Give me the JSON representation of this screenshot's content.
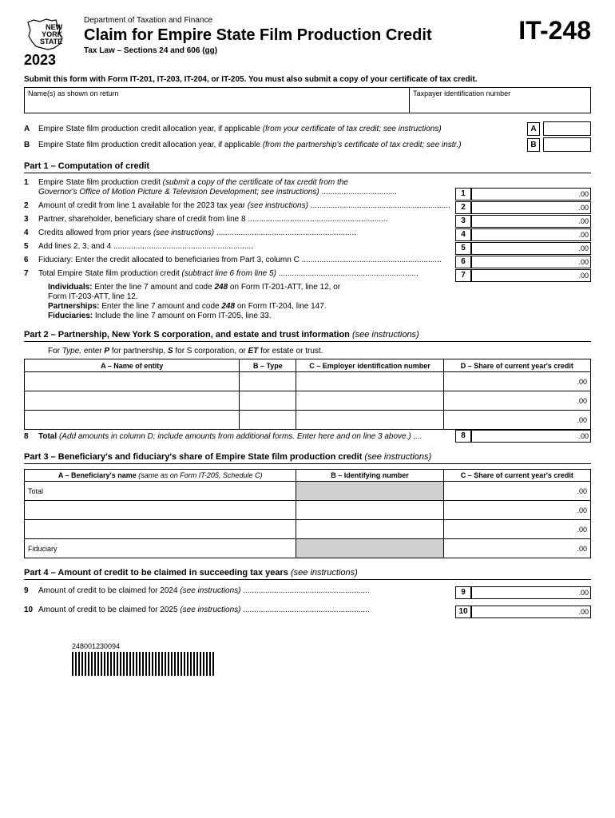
{
  "header": {
    "state_line1": "NEW",
    "state_line2": "YORK",
    "state_line3": "STATE",
    "year": "2023",
    "dept": "Department of Taxation and Finance",
    "title": "Claim for Empire State Film Production Credit",
    "tax_law": "Tax Law – Sections 24 and 606 (gg)",
    "form_number": "IT-248"
  },
  "submit_instr": "Submit this form with Form IT-201, IT-203, IT-204, or IT-205. You must also submit a copy of your certificate of tax credit.",
  "name_fields": {
    "names_label": "Name(s) as shown on return",
    "tin_label": "Taxpayer identification number"
  },
  "alloc": {
    "a_label": "A",
    "a_text": "Empire State film production credit allocation year, if applicable ",
    "a_italic": "(from your certificate of tax credit; see instructions)",
    "b_label": "B",
    "b_text": "Empire State film production credit allocation year, if applicable ",
    "b_italic": "(from the partnership's certificate of tax credit; see instr.)"
  },
  "part1": {
    "title": "Part 1 – Computation of credit",
    "lines": [
      {
        "num": "1",
        "text": "Empire State film production credit ",
        "italic": "(submit a copy of the certificate of tax credit from the",
        "cont": "Governor's Office of Motion Picture & Television Development; see instructions)",
        "box": "1"
      },
      {
        "num": "2",
        "text": "Amount of credit from line 1 available for the 2023 tax year ",
        "italic": "(see instructions)",
        "box": "2"
      },
      {
        "num": "3",
        "text": "Partner, shareholder, beneficiary share of credit from line 8",
        "box": "3"
      },
      {
        "num": "4",
        "text": "Credits allowed from prior years ",
        "italic": "(see instructions)",
        "box": "4"
      },
      {
        "num": "5",
        "text": "Add lines 2, 3, and 4",
        "box": "5"
      },
      {
        "num": "6",
        "text": "Fiduciary: Enter the credit allocated to beneficiaries from Part 3, column C",
        "box": "6"
      },
      {
        "num": "7",
        "text": "Total Empire State film production credit ",
        "italic": "(subtract line 6 from line 5)",
        "box": "7"
      }
    ],
    "instr1a": "Individuals:",
    "instr1b": " Enter the line 7 amount and code ",
    "instr1c": "248",
    "instr1d": " on Form IT-201-ATT, line 12, or",
    "instr1e": "Form IT-203-ATT, line 12.",
    "instr2a": "Partnerships:",
    "instr2b": " Enter the line 7 amount and code ",
    "instr2c": "248",
    "instr2d": " on Form IT-204, line 147.",
    "instr3a": "Fiduciaries:",
    "instr3b": " Include the line 7 amount on Form IT-205, line 33.",
    "zeros": ".00"
  },
  "part2": {
    "title_bold": "Part 2 – Partnership, New York S corporation, and estate and trust information ",
    "title_italic": "(see instructions)",
    "subtitle_a": "For ",
    "subtitle_b": "Type,",
    "subtitle_c": " enter ",
    "subtitle_d": "P",
    "subtitle_e": " for partnership, ",
    "subtitle_f": "S",
    "subtitle_g": " for S corporation, or ",
    "subtitle_h": "ET",
    "subtitle_i": " for estate or trust.",
    "headers": {
      "a": "A – Name of entity",
      "b": "B – Type",
      "c": "C – Employer identification number",
      "d": "D – Share of current year's credit"
    },
    "total_num": "8",
    "total_bold": "Total ",
    "total_italic": "(Add amounts in column D; include amounts from additional forms. Enter here and on line 3 above.)",
    "zeros": ".00"
  },
  "part3": {
    "title_bold": "Part 3 – Beneficiary's and fiduciary's share of Empire State film production credit ",
    "title_italic": "(see instructions)",
    "headers": {
      "a": "A – Beneficiary's name ",
      "a_italic": "(same as on Form IT-205, Schedule C)",
      "b": "B – Identifying number",
      "c": "C – Share of current year's credit"
    },
    "total": "Total",
    "fiduciary": "Fiduciary",
    "zeros": ".00"
  },
  "part4": {
    "title_bold": "Part 4 – Amount of credit to be claimed in succeeding tax years ",
    "title_italic": "(see instructions)",
    "line9_num": "9",
    "line9_text": "Amount of credit to be claimed for 2024 ",
    "line9_italic": "(see instructions)",
    "line10_num": "10",
    "line10_text": "Amount of credit to be claimed for 2025 ",
    "line10_italic": "(see instructions)",
    "zeros": ".00"
  },
  "barcode_num": "248001230094"
}
